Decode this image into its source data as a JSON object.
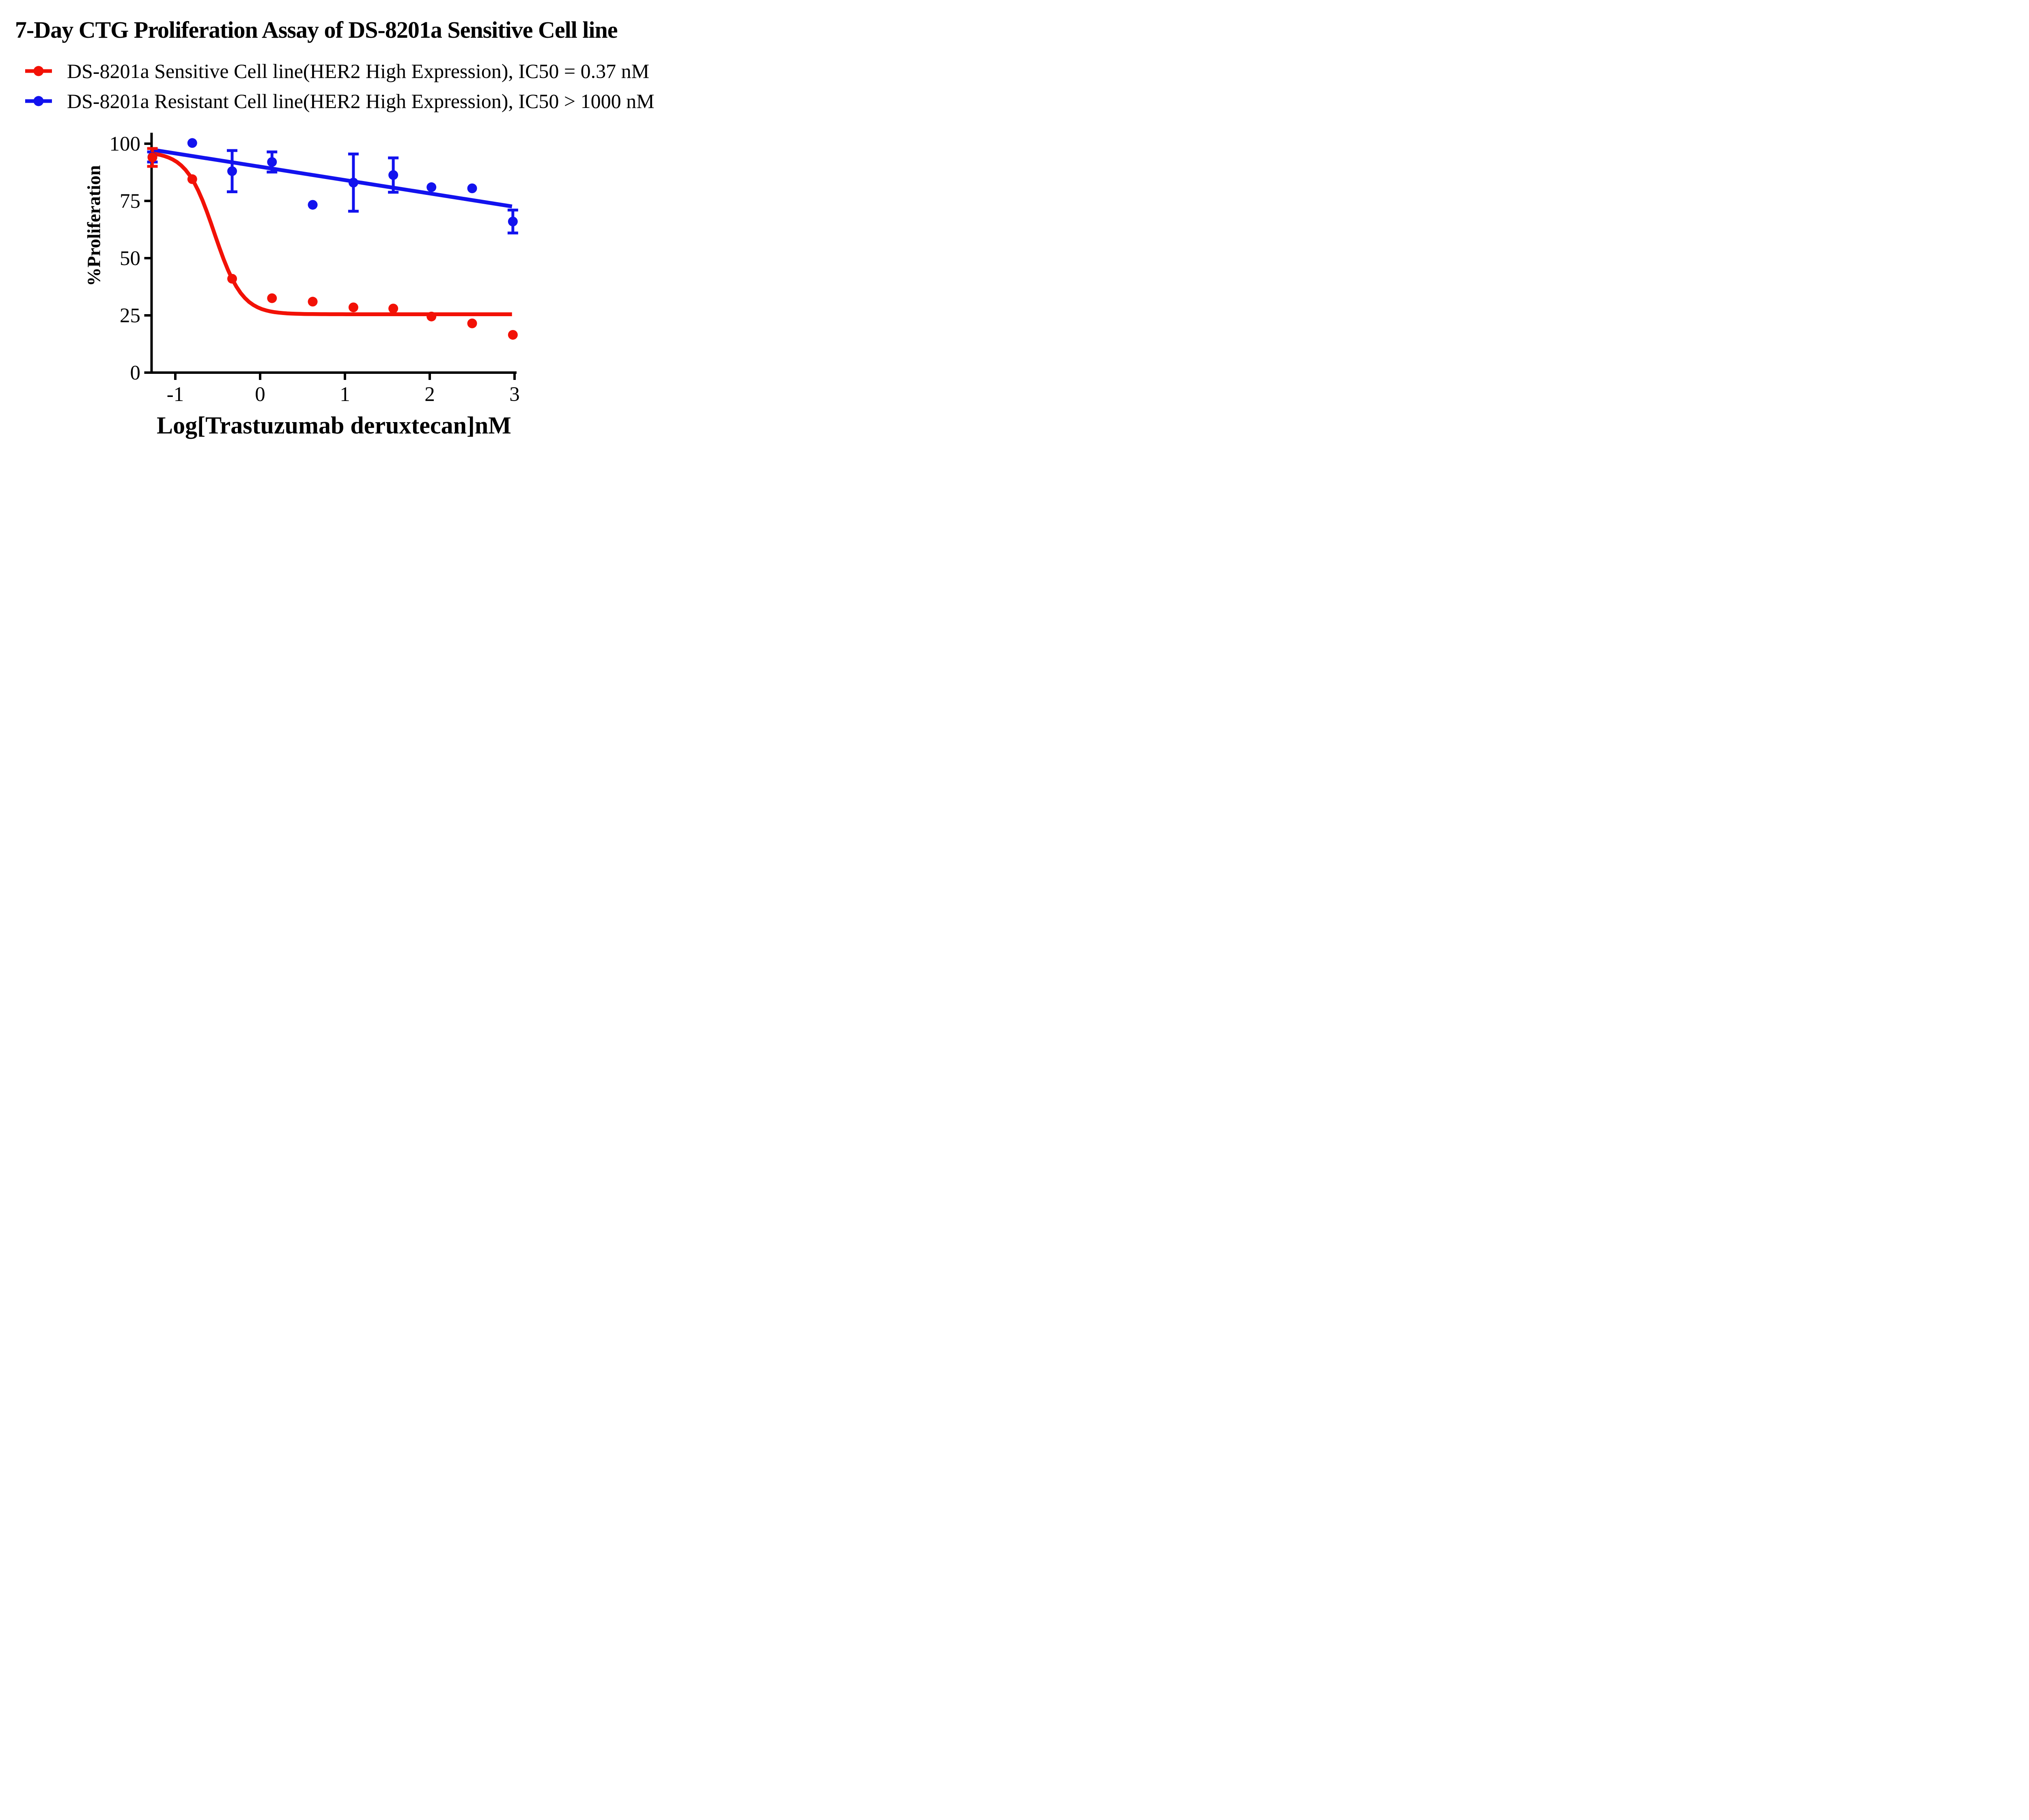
{
  "title": "7-Day CTG Proliferation Assay of DS-8201a Sensitive Cell line",
  "legend": {
    "items": [
      {
        "label": "DS-8201a Sensitive Cell line(HER2 High Expression), IC50 = 0.37 nM",
        "color": "#f21106",
        "marker": "line-with-circle-icon"
      },
      {
        "label": "DS-8201a Resistant Cell line(HER2 High Expression), IC50 > 1000 nM",
        "color": "#1212ee",
        "marker": "line-with-circle-icon"
      }
    ]
  },
  "chart_data": {
    "type": "scatter",
    "title": "7-Day CTG Proliferation Assay of DS-8201a Sensitive Cell line",
    "xlabel": "Log[Trastuzumab deruxtecan]nM",
    "ylabel": "%Proliferation",
    "x_ticks": [
      -1,
      0,
      1,
      2,
      3
    ],
    "y_ticks": [
      0,
      25,
      50,
      75,
      100
    ],
    "xlim": [
      -1.28,
      3.02
    ],
    "ylim": [
      0,
      104.7
    ],
    "grid": false,
    "legend_position": "top-left",
    "axis_color": "#000000",
    "series": [
      {
        "name": "DS-8201a Sensitive Cell line(HER2 High Expression)",
        "ic50_label": "IC50 = 0.37 nM",
        "color": "#f21106",
        "points": [
          {
            "x": -1.27,
            "y": 94,
            "err": 3.9
          },
          {
            "x": -0.8,
            "y": 84.5
          },
          {
            "x": -0.33,
            "y": 41
          },
          {
            "x": 0.14,
            "y": 32.5
          },
          {
            "x": 0.62,
            "y": 31
          },
          {
            "x": 1.1,
            "y": 28.5
          },
          {
            "x": 1.57,
            "y": 28
          },
          {
            "x": 2.02,
            "y": 24.5
          },
          {
            "x": 2.5,
            "y": 21.5
          },
          {
            "x": 2.98,
            "y": 16.5
          }
        ],
        "fit": {
          "type": "4PL",
          "top": 96.5,
          "bottom": 25.5,
          "logIC50": -0.54,
          "hill": 2.65,
          "x_start": -1.28,
          "x_end": 2.97
        }
      },
      {
        "name": "DS-8201a Resistant Cell line(HER2 High Expression)",
        "ic50_label": "IC50 > 1000 nM",
        "color": "#1212ee",
        "points": [
          {
            "x": -1.27,
            "y": 94.2,
            "err": 2.2
          },
          {
            "x": -0.8,
            "y": 100.3
          },
          {
            "x": -0.33,
            "y": 88,
            "err": 9
          },
          {
            "x": 0.14,
            "y": 92,
            "err": 4.4
          },
          {
            "x": 0.62,
            "y": 73.3
          },
          {
            "x": 1.1,
            "y": 83,
            "err": 12.5
          },
          {
            "x": 1.57,
            "y": 86.3,
            "err": 7.5
          },
          {
            "x": 2.02,
            "y": 81
          },
          {
            "x": 2.5,
            "y": 80.5
          },
          {
            "x": 2.98,
            "y": 66,
            "err": 5
          }
        ],
        "fit": {
          "type": "linear",
          "x_start": -1.28,
          "y_start": 97.4,
          "x_end": 2.97,
          "y_end": 72.6
        }
      }
    ]
  }
}
